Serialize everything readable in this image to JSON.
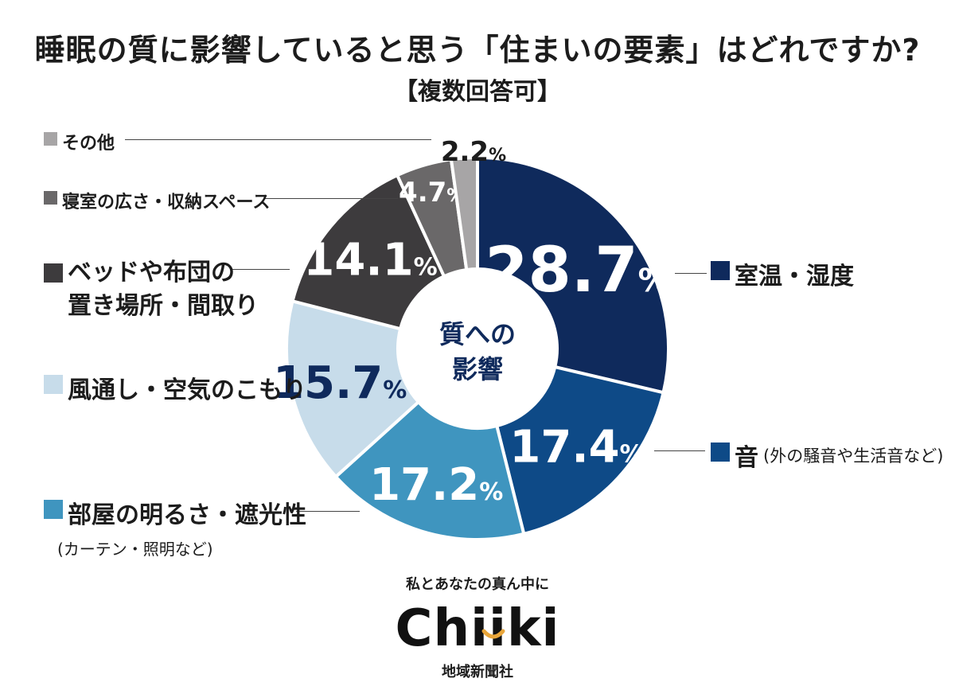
{
  "title": "睡眠の質に影響していると思う「住まいの要素」はどれですか?",
  "subtitle": "【複数回答可】",
  "center_label": [
    "質への",
    "影響"
  ],
  "chart_data": {
    "type": "pie",
    "donut": true,
    "unit": "%",
    "slices": [
      {
        "label": "室温・湿度",
        "value": 28.7,
        "color": "#0f2a5c"
      },
      {
        "label": "音",
        "note": "(外の騒音や生活音など)",
        "value": 17.4,
        "color": "#0e4a87"
      },
      {
        "label": "部屋の明るさ・遮光性",
        "note": "(カーテン・照明など)",
        "value": 17.2,
        "color": "#3f95bf"
      },
      {
        "label": "風通し・空気のこもり",
        "value": 15.7,
        "color": "#c7dcea"
      },
      {
        "label": "ベッドや布団の置き場所・間取り",
        "label_lines": [
          "ベッドや布団の",
          "置き場所・間取り"
        ],
        "value": 14.1,
        "color": "#3d3b3d"
      },
      {
        "label": "寝室の広さ・収納スペース",
        "value": 4.7,
        "color": "#6a6869"
      },
      {
        "label": "その他",
        "value": 2.2,
        "color": "#a7a5a6"
      }
    ]
  },
  "footer": {
    "tagline": "私とあなたの真ん中に",
    "logo_text": "Chiiki",
    "company": "地域新聞社",
    "logo_accent": "#e9a63a"
  }
}
